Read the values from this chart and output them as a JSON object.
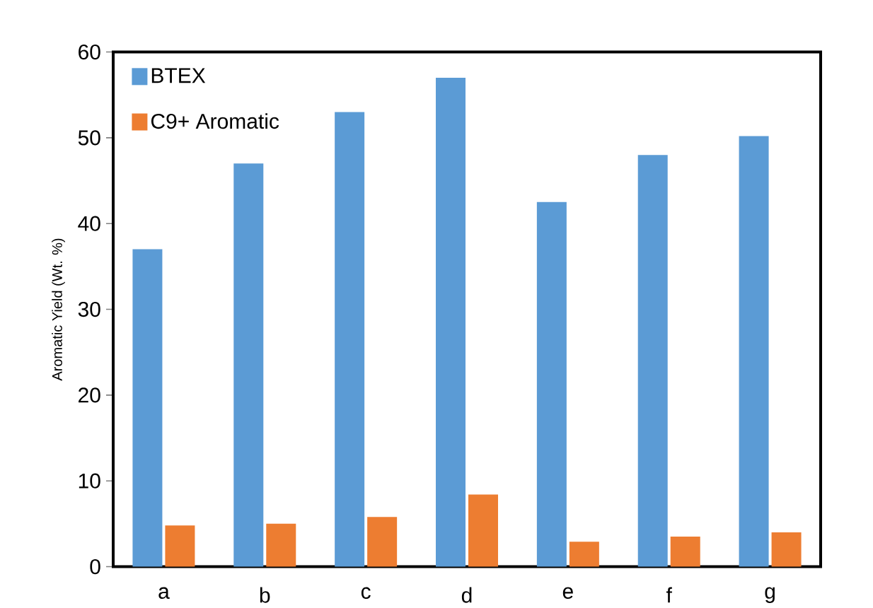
{
  "chart_data": {
    "type": "bar",
    "ylabel": "Aromatic Yield (Wt. %)",
    "categories": [
      "a",
      "b",
      "c",
      "d",
      "e",
      "f",
      "g"
    ],
    "series": [
      {
        "name": "BTEX",
        "color": "#5b9bd5",
        "values": [
          37,
          47,
          53,
          57,
          42.5,
          48,
          50.2
        ]
      },
      {
        "name": "C9+ Aromatic",
        "color": "#ed7d31",
        "values": [
          4.8,
          5,
          5.8,
          8.4,
          2.9,
          3.5,
          4
        ]
      }
    ],
    "ylim": [
      0,
      60
    ],
    "yticks": [
      0,
      10,
      20,
      30,
      40,
      50,
      60
    ],
    "legend": "top left",
    "grid": false
  }
}
